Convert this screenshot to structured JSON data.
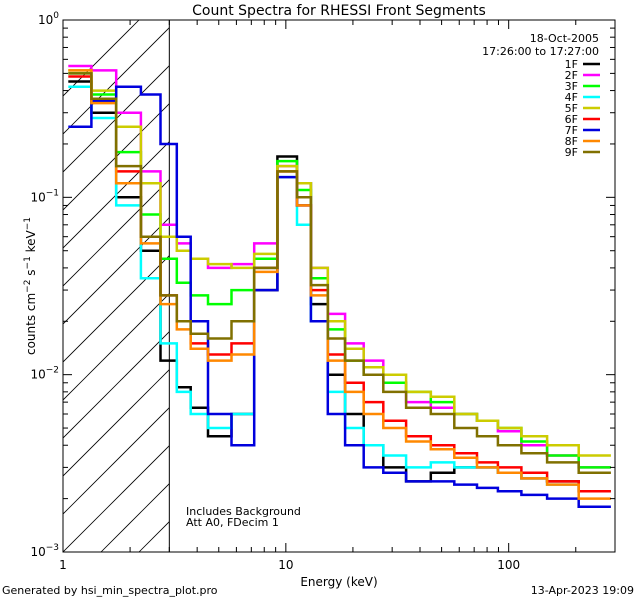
{
  "chart_data": {
    "type": "line",
    "scale": "log-log",
    "title": "Count Spectra for RHESSI Front Segments",
    "xlabel": "Energy (keV)",
    "ylabel": "counts cm^-2 s^-1 keV^-1",
    "xlim": [
      1.0,
      300.0
    ],
    "ylim": [
      0.001,
      1.0
    ],
    "x_ticks": [
      1,
      10,
      100
    ],
    "y_ticks": [
      0.001,
      0.01,
      0.1,
      1.0
    ],
    "date": "18-Oct-2005",
    "time_range": "17:26:00 to 17:27:00",
    "notes": [
      "Includes Background",
      "Att A0, FDecim 1"
    ],
    "hatched_region_keV": [
      1.0,
      3.0
    ],
    "series": [
      {
        "name": "1F",
        "color": "#000000",
        "values": [
          0.45,
          0.3,
          0.1,
          0.05,
          0.012,
          0.0085,
          0.0065,
          0.0045,
          0.006,
          0.03,
          0.17,
          0.12,
          0.025,
          0.01,
          0.006,
          0.004,
          0.003,
          0.0025,
          0.0028,
          0.003,
          0.003,
          0.0028,
          0.0026,
          0.0025,
          0.0022
        ]
      },
      {
        "name": "2F",
        "color": "#ff00ff",
        "values": [
          0.55,
          0.52,
          0.3,
          0.14,
          0.07,
          0.055,
          0.045,
          0.04,
          0.042,
          0.055,
          0.15,
          0.1,
          0.04,
          0.022,
          0.015,
          0.012,
          0.009,
          0.007,
          0.0065,
          0.006,
          0.0055,
          0.0048,
          0.004,
          0.0035,
          0.003
        ]
      },
      {
        "name": "3F",
        "color": "#00ff00",
        "values": [
          0.5,
          0.38,
          0.18,
          0.08,
          0.045,
          0.033,
          0.028,
          0.025,
          0.03,
          0.045,
          0.16,
          0.11,
          0.035,
          0.018,
          0.012,
          0.01,
          0.009,
          0.008,
          0.007,
          0.006,
          0.0055,
          0.005,
          0.0042,
          0.0035,
          0.003
        ]
      },
      {
        "name": "4F",
        "color": "#00ffff",
        "values": [
          0.42,
          0.28,
          0.09,
          0.035,
          0.015,
          0.008,
          0.006,
          0.005,
          0.006,
          0.04,
          0.13,
          0.07,
          0.02,
          0.008,
          0.005,
          0.004,
          0.0035,
          0.003,
          0.0032,
          0.003,
          0.003,
          0.0028,
          0.0026,
          0.0024,
          0.0022
        ]
      },
      {
        "name": "5F",
        "color": "#cccc00",
        "values": [
          0.52,
          0.4,
          0.25,
          0.12,
          0.06,
          0.05,
          0.045,
          0.042,
          0.04,
          0.048,
          0.15,
          0.12,
          0.04,
          0.02,
          0.014,
          0.011,
          0.01,
          0.008,
          0.0075,
          0.006,
          0.0055,
          0.005,
          0.0045,
          0.004,
          0.0035
        ]
      },
      {
        "name": "6F",
        "color": "#ff0000",
        "values": [
          0.48,
          0.35,
          0.14,
          0.06,
          0.028,
          0.02,
          0.015,
          0.013,
          0.015,
          0.04,
          0.14,
          0.09,
          0.03,
          0.013,
          0.009,
          0.007,
          0.0055,
          0.0045,
          0.004,
          0.0036,
          0.0032,
          0.003,
          0.0028,
          0.0025,
          0.0022
        ]
      },
      {
        "name": "7F",
        "color": "#0000dd",
        "values": [
          0.25,
          0.35,
          0.42,
          0.38,
          0.2,
          0.06,
          0.02,
          0.006,
          0.004,
          0.03,
          0.13,
          0.09,
          0.02,
          0.006,
          0.004,
          0.003,
          0.0028,
          0.0025,
          0.0025,
          0.0024,
          0.0023,
          0.0022,
          0.0021,
          0.002,
          0.0018
        ]
      },
      {
        "name": "8F",
        "color": "#ff8800",
        "values": [
          0.52,
          0.34,
          0.12,
          0.055,
          0.025,
          0.018,
          0.014,
          0.012,
          0.013,
          0.038,
          0.14,
          0.09,
          0.028,
          0.012,
          0.008,
          0.006,
          0.005,
          0.0042,
          0.0038,
          0.0034,
          0.003,
          0.0028,
          0.0026,
          0.0024,
          0.002
        ]
      },
      {
        "name": "9F",
        "color": "#807000",
        "values": [
          0.5,
          0.36,
          0.15,
          0.06,
          0.028,
          0.02,
          0.017,
          0.016,
          0.02,
          0.04,
          0.14,
          0.1,
          0.032,
          0.016,
          0.012,
          0.01,
          0.008,
          0.0065,
          0.006,
          0.005,
          0.0045,
          0.004,
          0.0036,
          0.0032,
          0.0028
        ]
      }
    ],
    "x": [
      1.2,
      1.5,
      2.0,
      2.5,
      3.0,
      3.5,
      4.0,
      5.0,
      6.5,
      8.0,
      10.5,
      12.0,
      14.0,
      17.0,
      20.0,
      25.0,
      30.0,
      40.0,
      50.0,
      65.0,
      80.0,
      100.0,
      130.0,
      170.0,
      250.0
    ]
  },
  "footer": {
    "generated": "Generated by hsi_min_spectra_plot.pro",
    "timestamp": "13-Apr-2023 19:09"
  }
}
